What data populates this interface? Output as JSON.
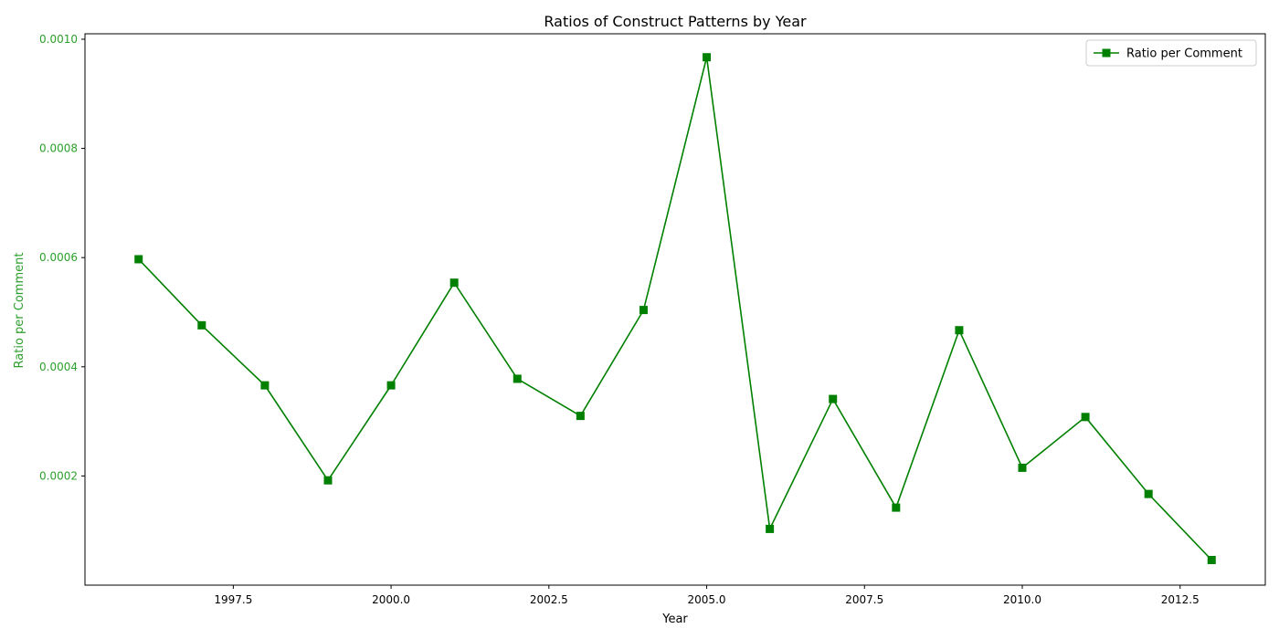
{
  "chart_data": {
    "type": "line",
    "title": "Ratios of Construct Patterns by Year",
    "xlabel": "Year",
    "ylabel": "Ratio per Comment",
    "xlim": [
      1995.15,
      2013.85
    ],
    "ylim": [
      0.0,
      0.00101
    ],
    "x_ticks": [
      1997.5,
      2000.0,
      2002.5,
      2005.0,
      2007.5,
      2010.0,
      2012.5
    ],
    "x_tick_labels": [
      "1997.5",
      "2000.0",
      "2002.5",
      "2005.0",
      "2007.5",
      "2010.0",
      "2012.5"
    ],
    "y_ticks": [
      0.0002,
      0.0004,
      0.0006,
      0.0008,
      0.001
    ],
    "y_tick_labels": [
      "0.0002",
      "0.0004",
      "0.0006",
      "0.0008",
      "0.0010"
    ],
    "grid": false,
    "legend_position": "top-right",
    "series": [
      {
        "name": "Ratio per Comment",
        "color": "#008000",
        "marker": "square",
        "x": [
          1996,
          1997,
          1998,
          1999,
          2000,
          2001,
          2002,
          2003,
          2004,
          2005,
          2006,
          2007,
          2008,
          2009,
          2010,
          2011,
          2012,
          2013
        ],
        "y": [
          0.000597,
          0.000476,
          0.000366,
          0.000192,
          0.000366,
          0.000554,
          0.000378,
          0.00031,
          0.000504,
          0.000967,
          0.000103,
          0.000341,
          0.000142,
          0.000467,
          0.000215,
          0.000308,
          0.000167,
          4.6e-05
        ]
      }
    ],
    "ylabel_color": "#2ca02c",
    "ytick_color": "#2ca02c"
  }
}
